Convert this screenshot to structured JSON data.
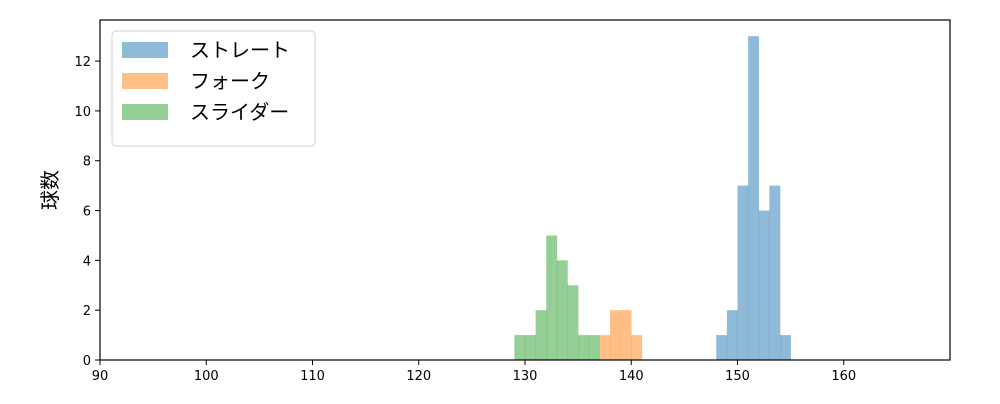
{
  "chart_data": {
    "type": "bar",
    "subtype": "histogram",
    "title": "",
    "xlabel": "",
    "ylabel": "球数",
    "xlim": [
      90,
      170
    ],
    "ylim": [
      0,
      13.65
    ],
    "xticks": [
      90,
      100,
      110,
      120,
      130,
      140,
      150,
      160
    ],
    "yticks": [
      0,
      2,
      4,
      6,
      8,
      10,
      12
    ],
    "grid": false,
    "legend_position": "top-left",
    "series": [
      {
        "name": "ストレート",
        "color": "#1f77b4",
        "bins": [
          [
            148,
            149,
            1
          ],
          [
            149,
            150,
            2
          ],
          [
            150,
            151,
            7
          ],
          [
            151,
            152,
            13
          ],
          [
            152,
            153,
            6
          ],
          [
            153,
            154,
            7
          ],
          [
            154,
            155,
            1
          ]
        ]
      },
      {
        "name": "フォーク",
        "color": "#ff7f0e",
        "bins": [
          [
            137,
            138,
            1
          ],
          [
            138,
            139,
            2
          ],
          [
            139,
            140,
            2
          ],
          [
            140,
            141,
            1
          ]
        ]
      },
      {
        "name": "スライダー",
        "color": "#2ca02c",
        "bins": [
          [
            129,
            130,
            1
          ],
          [
            130,
            131,
            1
          ],
          [
            131,
            132,
            2
          ],
          [
            132,
            133,
            5
          ],
          [
            133,
            134,
            4
          ],
          [
            134,
            135,
            3
          ],
          [
            135,
            136,
            1
          ],
          [
            136,
            137,
            1
          ]
        ]
      }
    ]
  }
}
